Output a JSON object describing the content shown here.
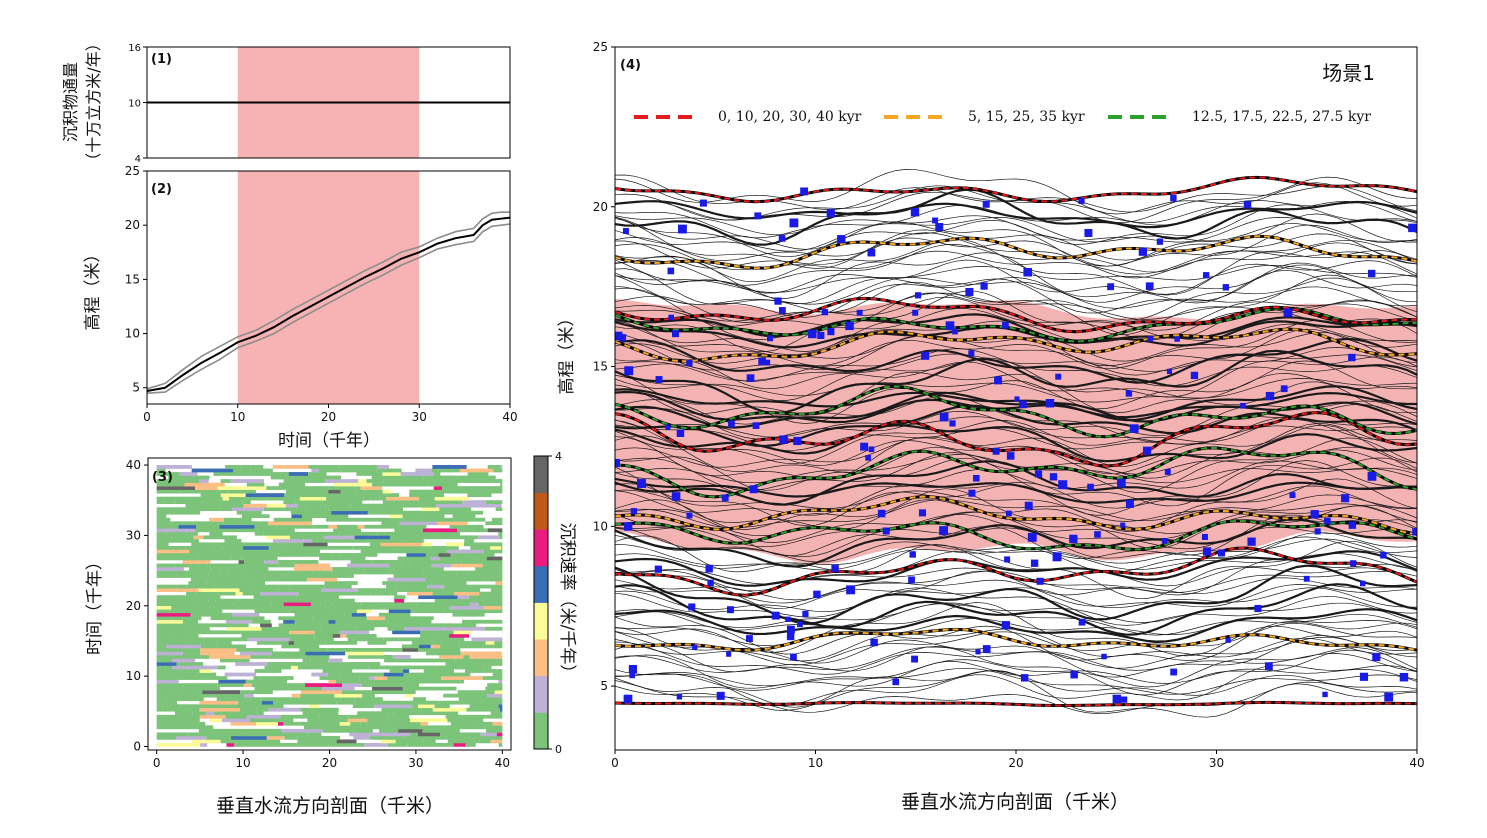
{
  "chart_data": [
    {
      "id": "panel1",
      "type": "line",
      "panel_label": "(1)",
      "ylabel_lines": [
        "沉积物通量",
        "（十万立方米/年）"
      ],
      "ylim": [
        4,
        16
      ],
      "yticks": [
        4,
        10,
        16
      ],
      "xlim": [
        0,
        40
      ],
      "shaded_x": [
        10,
        30
      ],
      "shade_color": "#f7b3b3",
      "series": [
        {
          "x": [
            0,
            40
          ],
          "y": [
            10,
            10
          ],
          "color": "#000000"
        }
      ]
    },
    {
      "id": "panel2",
      "type": "line",
      "panel_label": "(2)",
      "ylabel": "高程（米）",
      "xlabel": "时间（千年）",
      "xlim": [
        0,
        40
      ],
      "xticks": [
        0,
        10,
        20,
        30,
        40
      ],
      "ylim": [
        3.5,
        25
      ],
      "yticks": [
        5,
        10,
        15,
        20,
        25
      ],
      "shaded_x": [
        10,
        30
      ],
      "shade_color": "#f7b3b3",
      "series": [
        {
          "color": "#000000",
          "x": [
            0,
            2,
            4,
            6,
            8,
            10,
            12,
            14,
            16,
            18,
            20,
            22,
            24,
            26,
            28,
            30,
            32,
            34,
            36,
            37,
            38,
            39,
            40
          ],
          "y": [
            4.7,
            5.0,
            6.2,
            7.3,
            8.2,
            9.2,
            9.8,
            10.6,
            11.6,
            12.5,
            13.4,
            14.3,
            15.2,
            16.0,
            16.9,
            17.5,
            18.3,
            18.8,
            19.1,
            20.0,
            20.5,
            20.6,
            20.7
          ]
        },
        {
          "color": "#8c8c8c",
          "x": [
            0,
            2,
            4,
            6,
            8,
            10,
            12,
            14,
            16,
            18,
            20,
            22,
            24,
            26,
            28,
            30,
            32,
            34,
            36,
            37,
            38,
            39,
            40
          ],
          "y": [
            4.9,
            5.4,
            6.7,
            7.9,
            8.8,
            9.7,
            10.3,
            11.2,
            12.2,
            13.1,
            14.0,
            14.9,
            15.8,
            16.6,
            17.5,
            18.0,
            18.8,
            19.4,
            19.7,
            20.6,
            21.1,
            21.2,
            21.2
          ]
        },
        {
          "color": "#8c8c8c",
          "x": [
            0,
            2,
            4,
            6,
            8,
            10,
            12,
            14,
            16,
            18,
            20,
            22,
            24,
            26,
            28,
            30,
            32,
            34,
            36,
            37,
            38,
            39,
            40
          ],
          "y": [
            4.5,
            4.6,
            5.7,
            6.7,
            7.6,
            8.7,
            9.3,
            10.0,
            11.0,
            11.9,
            12.8,
            13.7,
            14.6,
            15.4,
            16.3,
            17.0,
            17.8,
            18.2,
            18.5,
            19.4,
            19.9,
            20.0,
            20.1
          ]
        }
      ]
    },
    {
      "id": "panel3",
      "type": "heatmap",
      "panel_label": "(3)",
      "xlabel": "垂直水流方向剖面（千米）",
      "ylabel": "时间（千年）",
      "xlim": [
        -1,
        41
      ],
      "xticks": [
        0,
        10,
        20,
        30,
        40
      ],
      "ylim": [
        -0.5,
        41
      ],
      "yticks": [
        0,
        10,
        20,
        30,
        40
      ],
      "colorbar": {
        "label": "沉积速率（米/千年）",
        "range": [
          0,
          4
        ],
        "ticks": [
          0,
          4
        ],
        "colors": [
          "#7cc47a",
          "#bdb2d6",
          "#fbbf86",
          "#fbfb99",
          "#3a6db4",
          "#eb1c80",
          "#c0581a",
          "#666666"
        ]
      }
    },
    {
      "id": "panel4",
      "type": "line",
      "panel_label": "(4)",
      "title": "场景1",
      "xlabel": "垂直水流方向剖面（千米）",
      "ylabel": "高程（米）",
      "xlim": [
        0,
        40
      ],
      "xticks": [
        0,
        10,
        20,
        30,
        40
      ],
      "ylim": [
        3,
        25
      ],
      "yticks": [
        5,
        10,
        15,
        20,
        25
      ],
      "legend_position": "top",
      "legend": [
        {
          "label": "0, 10, 20, 30, 40 kyr",
          "color": "#e41a1c"
        },
        {
          "label": "5, 15, 25, 35 kyr",
          "color": "#f5a623"
        },
        {
          "label": "12.5, 17.5, 22.5, 27.5 kyr",
          "color": "#2ca02c"
        }
      ],
      "shade_color": "#f4b3b3",
      "shaded_y": [
        9.3,
        16.8
      ],
      "blue_color": "#1a1ae6",
      "surfaces": [
        {
          "t": 0,
          "group": "red",
          "base": 4.45,
          "amp": 0.05
        },
        {
          "t": 5,
          "group": "orange",
          "base": 6.4,
          "amp": 0.35
        },
        {
          "t": 10,
          "group": "red",
          "base": 8.6,
          "amp": 0.6
        },
        {
          "t": 12.5,
          "group": "green",
          "base": 9.8,
          "amp": 0.55
        },
        {
          "t": 15,
          "group": "orange",
          "base": 10.3,
          "amp": 0.5
        },
        {
          "t": 17.5,
          "group": "green",
          "base": 11.8,
          "amp": 0.7
        },
        {
          "t": 20,
          "group": "red",
          "base": 12.8,
          "amp": 0.8
        },
        {
          "t": 22.5,
          "group": "green",
          "base": 13.5,
          "amp": 0.7
        },
        {
          "t": 25,
          "group": "orange",
          "base": 15.7,
          "amp": 0.5
        },
        {
          "t": 27.5,
          "group": "green",
          "base": 16.3,
          "amp": 0.45
        },
        {
          "t": 30,
          "group": "red",
          "base": 16.6,
          "amp": 0.5
        },
        {
          "t": 35,
          "group": "orange",
          "base": 18.6,
          "amp": 0.5
        },
        {
          "t": 40,
          "group": "red",
          "base": 20.5,
          "amp": 0.35
        }
      ]
    }
  ]
}
